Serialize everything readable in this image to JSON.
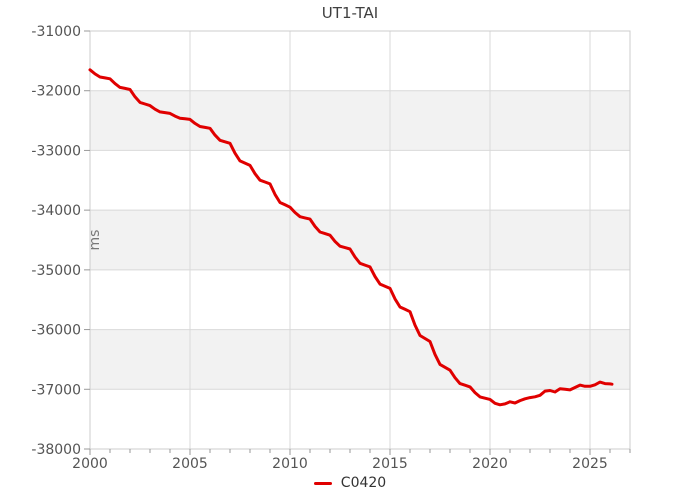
{
  "title": "UT1-TAI",
  "legend": {
    "items": [
      {
        "label": "C0420",
        "color": "#e00000"
      }
    ]
  },
  "colors": {
    "background": "#ffffff",
    "band_alt": "#f2f2f2",
    "grid_line": "#d9d9d9",
    "axis_border": "#cccccc",
    "tick": "#999999",
    "tick_label": "#555555",
    "axis_name": "#777777",
    "series": "#e00000"
  },
  "chart_data": {
    "type": "line",
    "title": "UT1-TAI",
    "xlabel": "",
    "ylabel": "ms",
    "legend_position": "bottom-center",
    "grid": true,
    "background_bands": "alternate horizontal white/gray per 1000 ms",
    "band_colors": [
      "#ffffff",
      "#f2f2f2"
    ],
    "xlim": [
      2000,
      2027
    ],
    "ylim": [
      -38000,
      -31000
    ],
    "x_major_ticks": [
      2000,
      2005,
      2010,
      2015,
      2020,
      2025
    ],
    "x_minor_tick_interval": 1,
    "y_ticks": [
      -31000,
      -32000,
      -33000,
      -34000,
      -35000,
      -36000,
      -37000,
      -38000
    ],
    "series": [
      {
        "name": "C0420",
        "color": "#e00000",
        "points": [
          [
            2000.0,
            -31650
          ],
          [
            2000.25,
            -31718
          ],
          [
            2000.5,
            -31770
          ],
          [
            2000.75,
            -31785
          ],
          [
            2001.0,
            -31800
          ],
          [
            2001.25,
            -31881
          ],
          [
            2001.5,
            -31944
          ],
          [
            2001.75,
            -31962
          ],
          [
            2002.0,
            -31980
          ],
          [
            2002.25,
            -32102
          ],
          [
            2002.5,
            -32196
          ],
          [
            2002.75,
            -32223
          ],
          [
            2003.0,
            -32250
          ],
          [
            2003.25,
            -32309
          ],
          [
            2003.5,
            -32354
          ],
          [
            2003.75,
            -32367
          ],
          [
            2004.0,
            -32380
          ],
          [
            2004.25,
            -32425
          ],
          [
            2004.5,
            -32460
          ],
          [
            2004.75,
            -32470
          ],
          [
            2005.0,
            -32480
          ],
          [
            2005.25,
            -32548
          ],
          [
            2005.5,
            -32600
          ],
          [
            2005.75,
            -32615
          ],
          [
            2006.0,
            -32630
          ],
          [
            2006.25,
            -32743
          ],
          [
            2006.5,
            -32830
          ],
          [
            2006.75,
            -32855
          ],
          [
            2007.0,
            -32880
          ],
          [
            2007.25,
            -33047
          ],
          [
            2007.5,
            -33176
          ],
          [
            2007.75,
            -33213
          ],
          [
            2008.0,
            -33250
          ],
          [
            2008.25,
            -33390
          ],
          [
            2008.5,
            -33498
          ],
          [
            2008.75,
            -33529
          ],
          [
            2009.0,
            -33560
          ],
          [
            2009.25,
            -33736
          ],
          [
            2009.5,
            -33872
          ],
          [
            2009.75,
            -33911
          ],
          [
            2010.0,
            -33950
          ],
          [
            2010.25,
            -34040
          ],
          [
            2010.5,
            -34110
          ],
          [
            2010.75,
            -34130
          ],
          [
            2011.0,
            -34150
          ],
          [
            2011.25,
            -34272
          ],
          [
            2011.5,
            -34366
          ],
          [
            2011.75,
            -34393
          ],
          [
            2012.0,
            -34420
          ],
          [
            2012.25,
            -34524
          ],
          [
            2012.5,
            -34604
          ],
          [
            2012.75,
            -34627
          ],
          [
            2013.0,
            -34650
          ],
          [
            2013.25,
            -34785
          ],
          [
            2013.5,
            -34890
          ],
          [
            2013.75,
            -34920
          ],
          [
            2014.0,
            -34950
          ],
          [
            2014.25,
            -35112
          ],
          [
            2014.5,
            -35238
          ],
          [
            2014.75,
            -35274
          ],
          [
            2015.0,
            -35310
          ],
          [
            2015.25,
            -35486
          ],
          [
            2015.5,
            -35622
          ],
          [
            2015.75,
            -35661
          ],
          [
            2016.0,
            -35700
          ],
          [
            2016.25,
            -35925
          ],
          [
            2016.5,
            -36100
          ],
          [
            2016.75,
            -36150
          ],
          [
            2017.0,
            -36200
          ],
          [
            2017.25,
            -36416
          ],
          [
            2017.5,
            -36584
          ],
          [
            2017.75,
            -36632
          ],
          [
            2018.0,
            -36680
          ],
          [
            2018.25,
            -36806
          ],
          [
            2018.5,
            -36904
          ],
          [
            2018.75,
            -36932
          ],
          [
            2019.0,
            -36960
          ],
          [
            2019.25,
            -37055
          ],
          [
            2019.5,
            -37128
          ],
          [
            2019.75,
            -37149
          ],
          [
            2020.0,
            -37170
          ],
          [
            2020.25,
            -37235
          ],
          [
            2020.5,
            -37260
          ],
          [
            2020.75,
            -37245
          ],
          [
            2021.0,
            -37210
          ],
          [
            2021.25,
            -37230
          ],
          [
            2021.5,
            -37190
          ],
          [
            2021.75,
            -37160
          ],
          [
            2022.0,
            -37140
          ],
          [
            2022.25,
            -37125
          ],
          [
            2022.5,
            -37100
          ],
          [
            2022.75,
            -37030
          ],
          [
            2023.0,
            -37020
          ],
          [
            2023.25,
            -37045
          ],
          [
            2023.5,
            -36990
          ],
          [
            2023.75,
            -37000
          ],
          [
            2024.0,
            -37010
          ],
          [
            2024.25,
            -36970
          ],
          [
            2024.5,
            -36930
          ],
          [
            2024.75,
            -36950
          ],
          [
            2025.0,
            -36950
          ],
          [
            2025.25,
            -36925
          ],
          [
            2025.5,
            -36880
          ],
          [
            2025.75,
            -36905
          ],
          [
            2026.0,
            -36910
          ],
          [
            2026.1,
            -36915
          ]
        ]
      }
    ]
  }
}
